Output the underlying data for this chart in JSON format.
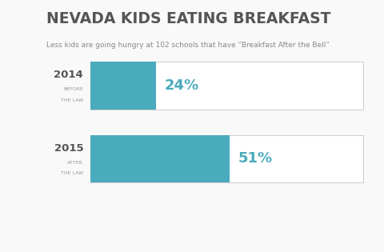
{
  "title": "NEVADA KIDS EATING BREAKFAST",
  "subtitle": "Less kids are going hungry at 102 schools that have “Breakfast After the Bell”",
  "bars": [
    {
      "year": "2014",
      "sublabel1": "BEFORE",
      "sublabel2": "THE LAW",
      "value": 24,
      "label": "24%"
    },
    {
      "year": "2015",
      "sublabel1": "AFTER",
      "sublabel2": "THE LAW",
      "value": 51,
      "label": "51%"
    }
  ],
  "bar_color": "#4AABBD",
  "bar_bg_color": "#FFFFFF",
  "bar_border_color": "#CCCCCC",
  "background_color": "#F9F9F9",
  "title_color": "#555555",
  "subtitle_color": "#888888",
  "year_color": "#555555",
  "sublabel_color": "#999999",
  "pct_label_color": "#4AABBD",
  "max_value": 100
}
